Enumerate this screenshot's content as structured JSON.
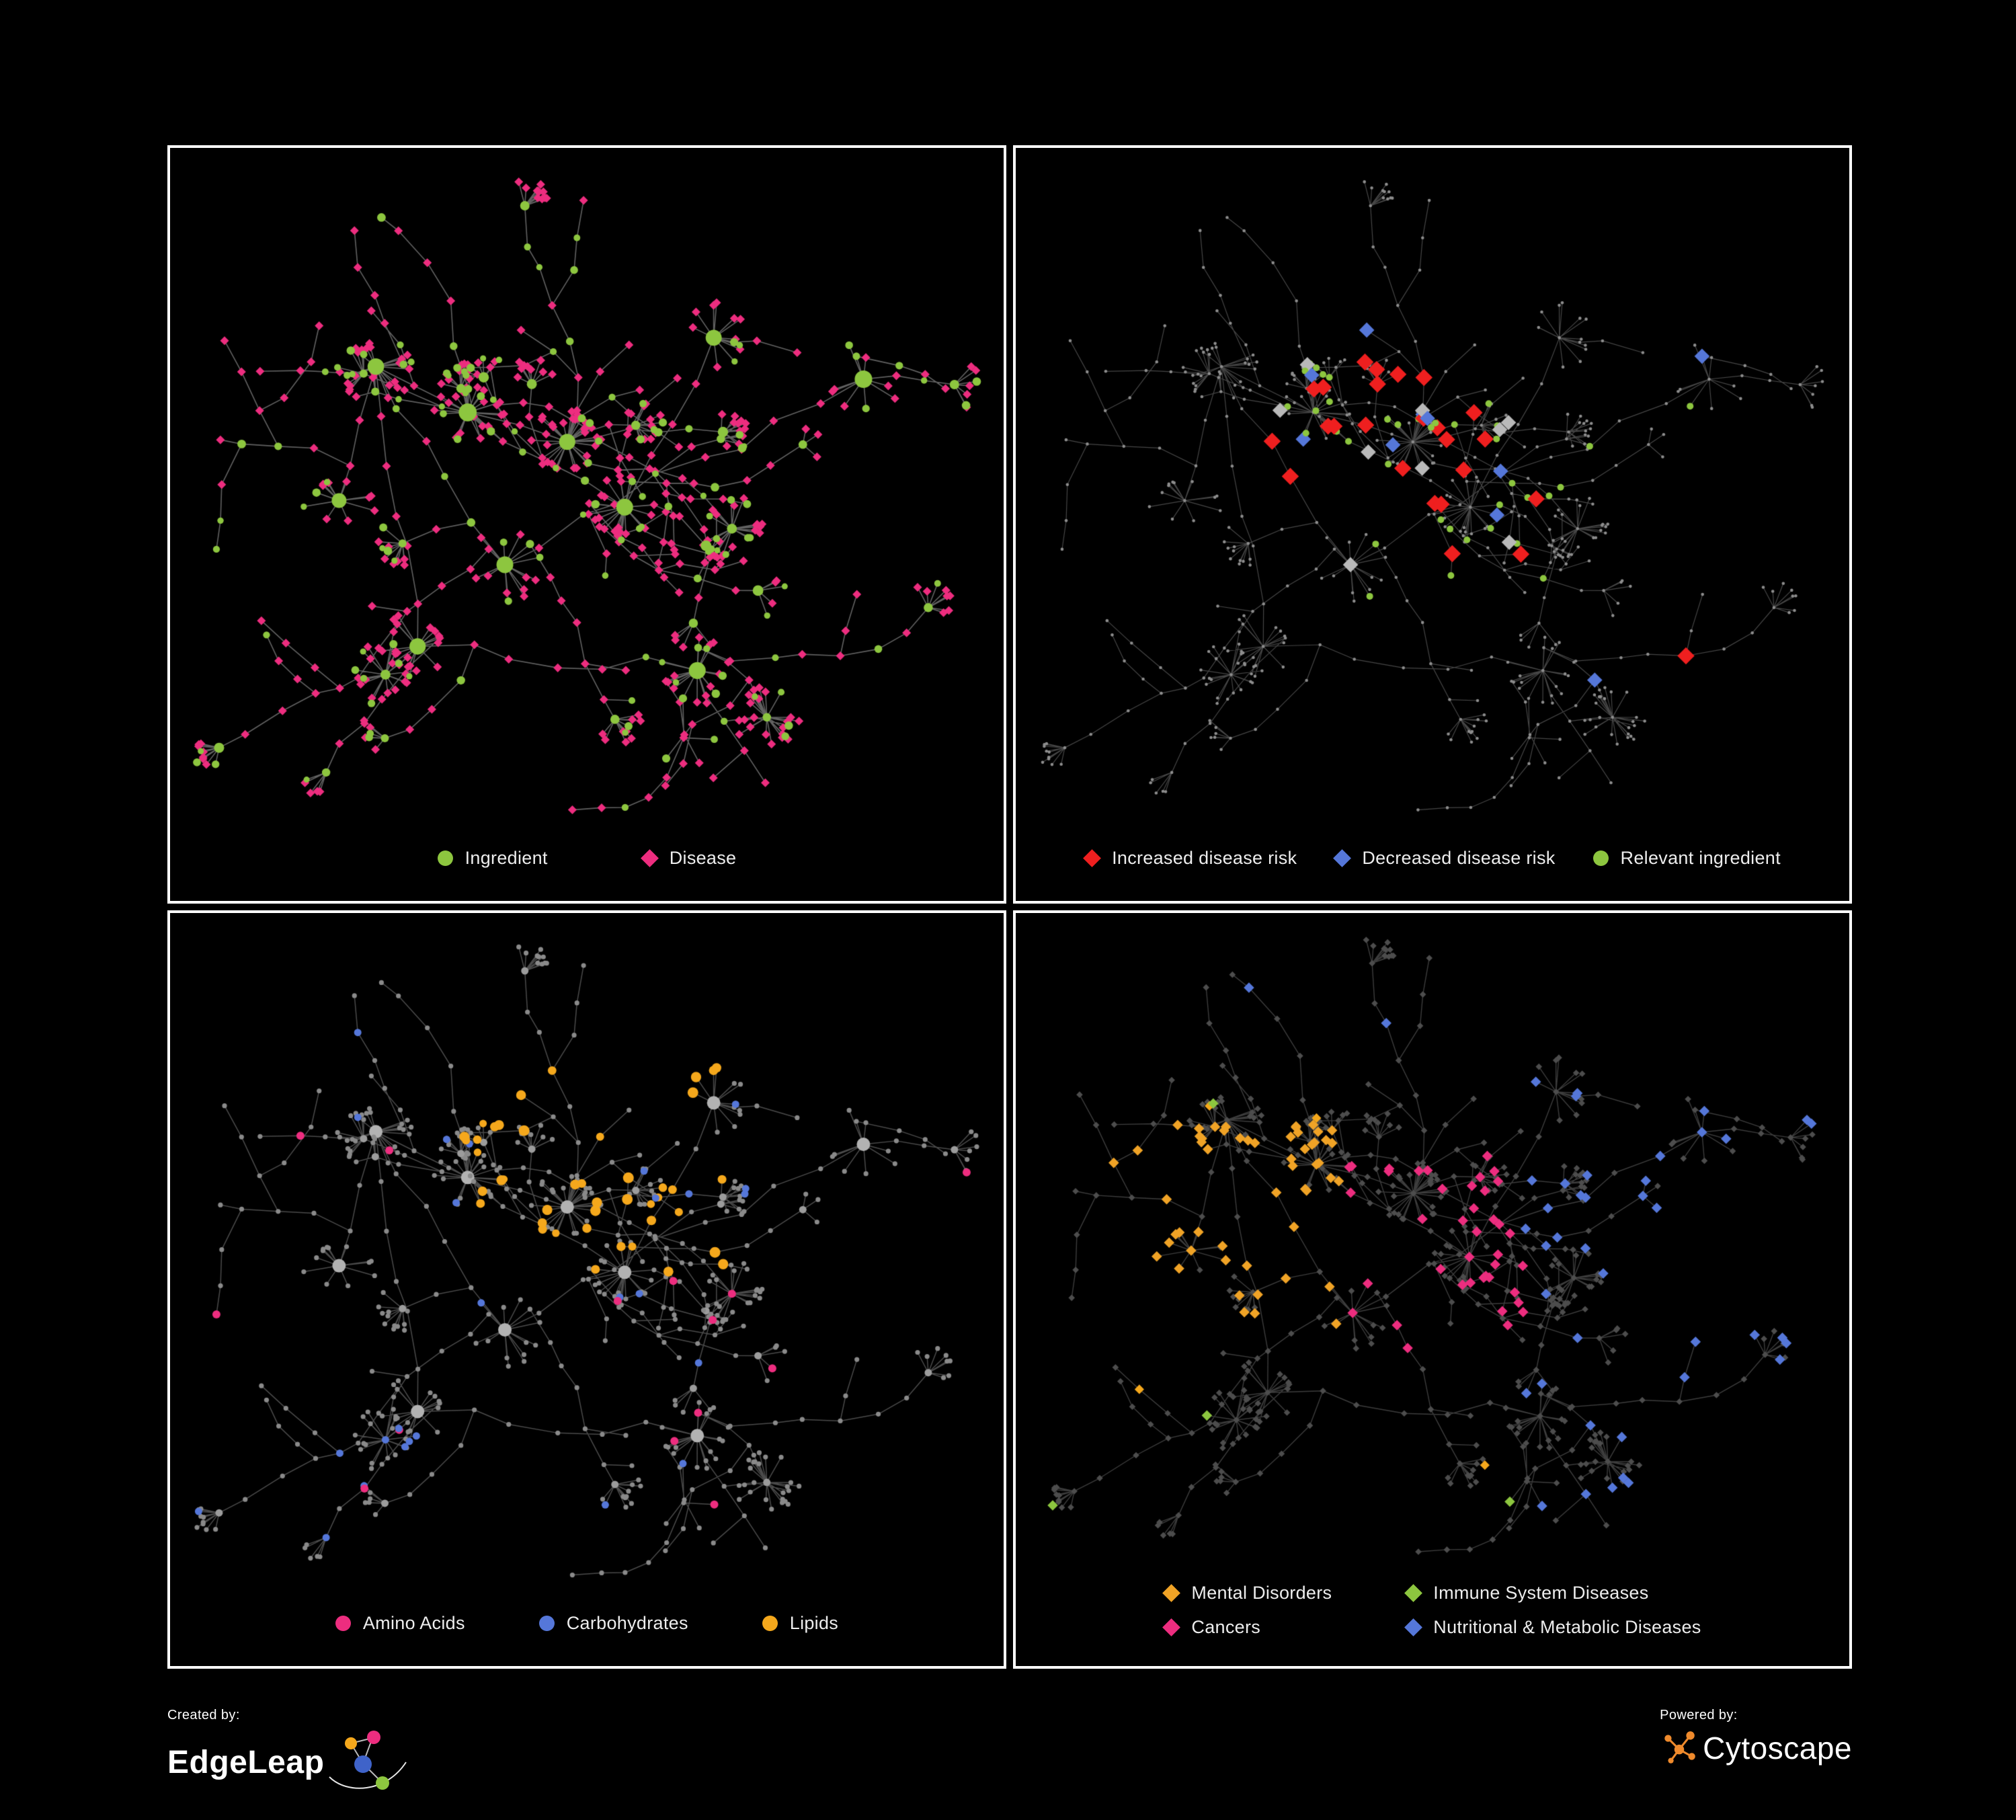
{
  "figure": {
    "background": "#000000"
  },
  "colors": {
    "green": "#8dc63f",
    "pink": "#ed2d7f",
    "red": "#ef1f1f",
    "blue": "#5577d9",
    "yellow": "#f5a81c",
    "orange": "#f0a326",
    "gray": "#8d8d8d",
    "light_gray": "#b9b9b9",
    "dark_gray": "#4d4d4d"
  },
  "network": {
    "layout_seed": 77
  },
  "panels": [
    {
      "name": "ingredient-disease-network",
      "style": "ingredient-disease",
      "color_seed": 11,
      "legend": [
        {
          "label": "Ingredient",
          "shape": "circle",
          "color": "#8dc63f"
        },
        {
          "label": "Disease",
          "shape": "diamond",
          "color": "#ed2d7f"
        }
      ]
    },
    {
      "name": "disease-risk-network",
      "style": "risk",
      "color_seed": 22,
      "legend": [
        {
          "label": "Increased disease risk",
          "shape": "diamond",
          "color": "#ef1f1f"
        },
        {
          "label": "Decreased disease risk",
          "shape": "diamond",
          "color": "#5577d9"
        },
        {
          "label": "Relevant ingredient",
          "shape": "circle",
          "color": "#8dc63f"
        }
      ]
    },
    {
      "name": "macronutrient-network",
      "style": "macro",
      "color_seed": 33,
      "legend": [
        {
          "label": "Amino Acids",
          "shape": "circle",
          "color": "#ed2d7f"
        },
        {
          "label": "Carbohydrates",
          "shape": "circle",
          "color": "#5577d9"
        },
        {
          "label": "Lipids",
          "shape": "circle",
          "color": "#f5a81c"
        }
      ]
    },
    {
      "name": "disease-category-network",
      "style": "categories",
      "color_seed": 44,
      "legend": [
        {
          "label": "Mental Disorders",
          "shape": "diamond",
          "color": "#f0a326"
        },
        {
          "label": "Immune System Diseases",
          "shape": "diamond",
          "color": "#8dc63f"
        },
        {
          "label": "Cancers",
          "shape": "diamond",
          "color": "#ed2d7f"
        },
        {
          "label": "Nutritional & Metabolic Diseases",
          "shape": "diamond",
          "color": "#5577d9"
        }
      ]
    }
  ],
  "footer": {
    "created_by_label": "Created by:",
    "created_by_brand": "EdgeLeap",
    "powered_by_label": "Powered by:",
    "powered_by_brand": "Cytoscape"
  }
}
